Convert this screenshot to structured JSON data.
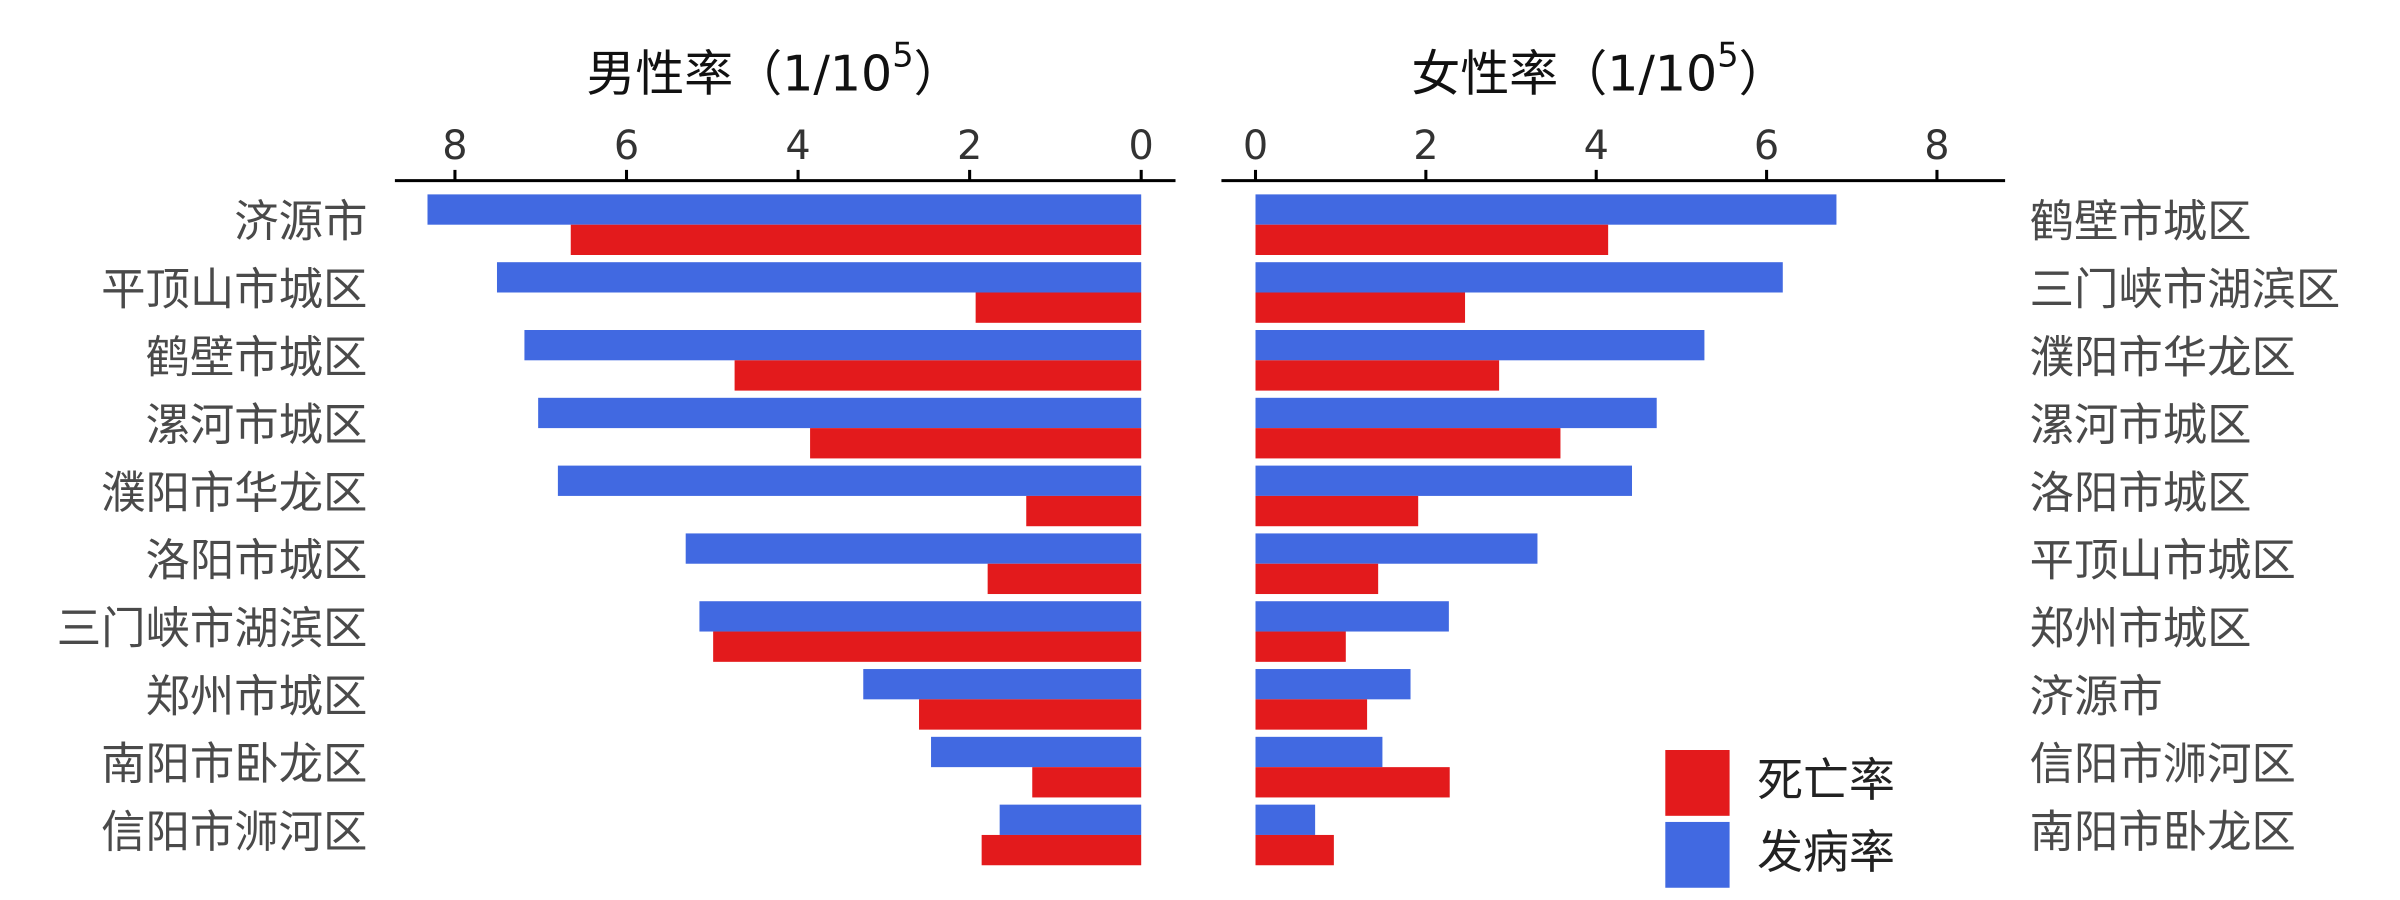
{
  "chart_data": [
    {
      "type": "bar",
      "orientation": "horizontal",
      "x_reversed": true,
      "label_side": "left",
      "title_parts": [
        "男性率（1/10",
        "5",
        "）"
      ],
      "categories": [
        "济源市",
        "平顶山市城区",
        "鹤壁市城区",
        "漯河市城区",
        "濮阳市华龙区",
        "洛阳市城区",
        "三门峡市湖滨区",
        "郑州市城区",
        "南阳市卧龙区",
        "信阳市浉河区"
      ],
      "series": [
        {
          "name": "发病率",
          "color": "#4169e1",
          "values": [
            8.32,
            7.51,
            7.19,
            7.03,
            6.8,
            5.31,
            5.15,
            3.24,
            2.45,
            1.65
          ]
        },
        {
          "name": "死亡率",
          "color": "#e31a1c",
          "values": [
            6.65,
            1.93,
            4.74,
            3.86,
            1.34,
            1.79,
            4.99,
            2.59,
            1.27,
            1.86
          ]
        }
      ],
      "xlim": [
        -0.4,
        8.7
      ],
      "xticks": [
        0,
        2,
        4,
        6,
        8
      ]
    },
    {
      "type": "bar",
      "orientation": "horizontal",
      "x_reversed": false,
      "label_side": "right",
      "title_parts": [
        "女性率（1/10",
        "5",
        "）"
      ],
      "categories": [
        "鹤壁市城区",
        "三门峡市湖滨区",
        "濮阳市华龙区",
        "漯河市城区",
        "洛阳市城区",
        "平顶山市城区",
        "郑州市城区",
        "济源市",
        "信阳市浉河区",
        "南阳市卧龙区"
      ],
      "series": [
        {
          "color": "#4169e1",
          "values": [
            6.82,
            6.19,
            5.27,
            4.71,
            4.42,
            3.31,
            2.27,
            1.82,
            1.49,
            0.7
          ]
        },
        {
          "color": "#e31a1c",
          "values": [
            4.14,
            2.46,
            2.86,
            3.58,
            1.91,
            1.44,
            1.06,
            1.31,
            2.28,
            0.92
          ]
        }
      ],
      "xlim": [
        -0.4,
        8.8
      ],
      "xticks": [
        0,
        2,
        4,
        6,
        8
      ]
    }
  ]
}
